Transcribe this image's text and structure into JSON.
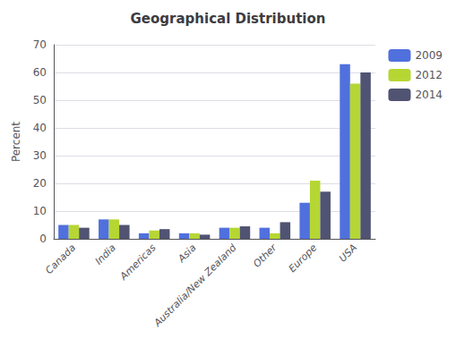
{
  "chart_data": {
    "type": "bar",
    "title": "Geographical Distribution",
    "categories": [
      "Canada",
      "India",
      "Americas",
      "Asia",
      "Australia/New Zealand",
      "Other",
      "Europe",
      "USA"
    ],
    "series": [
      {
        "name": "2009",
        "values": [
          5,
          7,
          2,
          2,
          4,
          4,
          13,
          63
        ]
      },
      {
        "name": "2012",
        "values": [
          5,
          7,
          3,
          2,
          4,
          2,
          21,
          56
        ]
      },
      {
        "name": "2014",
        "values": [
          4,
          5,
          3.5,
          1.5,
          4.5,
          6,
          17,
          60
        ]
      }
    ],
    "ylabel": "Percent",
    "ylim": [
      0,
      70
    ],
    "yticks": [
      0,
      10,
      20,
      30,
      40,
      50,
      60,
      70
    ],
    "grid": true,
    "legend": "upper right"
  }
}
